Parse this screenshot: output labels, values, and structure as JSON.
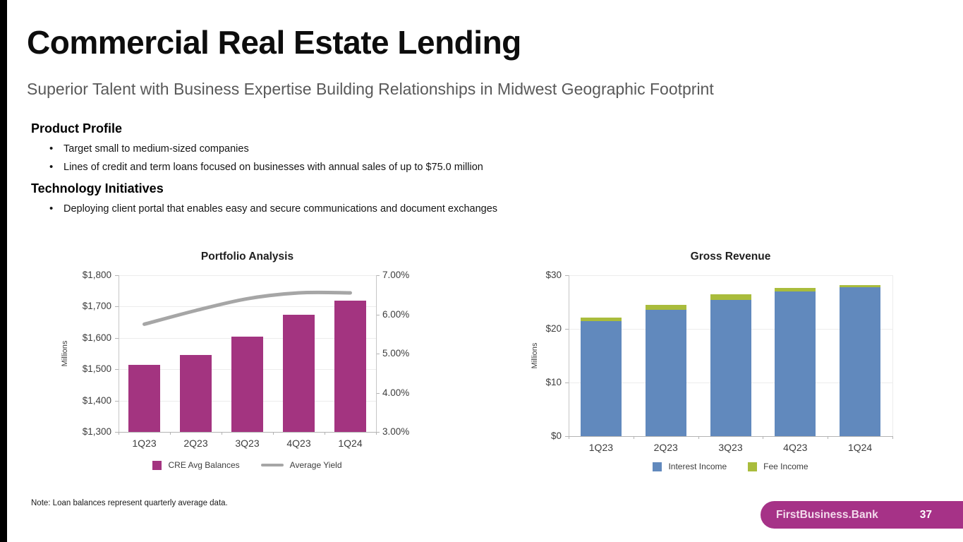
{
  "header": {
    "title": "Commercial Real Estate Lending",
    "subtitle": "Superior Talent with Business Expertise Building Relationships in Midwest Geographic Footprint"
  },
  "sections": [
    {
      "heading": "Product Profile",
      "bullets": [
        "Target small to medium-sized companies",
        "Lines of credit and term loans focused on businesses with annual sales of up to $75.0 million"
      ]
    },
    {
      "heading": "Technology Initiatives",
      "bullets": [
        "Deploying client portal that enables easy and secure communications and document exchanges"
      ]
    }
  ],
  "note": "Note: Loan balances represent quarterly average data.",
  "footer": {
    "brand": "FirstBusiness.Bank",
    "page_number": "37",
    "bar_color": "#a63287"
  },
  "chart_data": [
    {
      "type": "bar",
      "stacked": false,
      "title": "Portfolio Analysis",
      "categories": [
        "1Q23",
        "2Q23",
        "3Q23",
        "4Q23",
        "1Q24"
      ],
      "series": [
        {
          "name": "CRE Avg Balances",
          "kind": "bar",
          "axis": "left",
          "color": "#a33480",
          "values": [
            1515,
            1545,
            1605,
            1675,
            1720
          ]
        },
        {
          "name": "Average Yield",
          "kind": "line",
          "axis": "right",
          "color": "#a6a6a6",
          "values": [
            5.75,
            6.1,
            6.4,
            6.55,
            6.55
          ]
        }
      ],
      "left_axis": {
        "title": "Millions",
        "min": 1300,
        "max": 1800,
        "step": 100,
        "ticks": [
          "$1,300",
          "$1,400",
          "$1,500",
          "$1,600",
          "$1,700",
          "$1,800"
        ]
      },
      "right_axis": {
        "min": 3,
        "max": 7,
        "step": 1,
        "ticks": [
          "3.00%",
          "4.00%",
          "5.00%",
          "6.00%",
          "7.00%"
        ]
      },
      "legend_position": "bottom",
      "grid": true
    },
    {
      "type": "bar",
      "stacked": true,
      "title": "Gross Revenue",
      "categories": [
        "1Q23",
        "2Q23",
        "3Q23",
        "4Q23",
        "1Q24"
      ],
      "series": [
        {
          "name": "Interest Income",
          "kind": "bar",
          "axis": "left",
          "color": "#6189bd",
          "values": [
            21.5,
            23.5,
            25.4,
            27.0,
            27.7
          ]
        },
        {
          "name": "Fee Income",
          "kind": "bar",
          "axis": "left",
          "color": "#a9bc3c",
          "values": [
            0.6,
            1.0,
            1.0,
            0.6,
            0.4
          ]
        }
      ],
      "left_axis": {
        "title": "Millions",
        "min": 0,
        "max": 30,
        "step": 10,
        "ticks": [
          "$0",
          "$10",
          "$20",
          "$30"
        ]
      },
      "legend_position": "bottom",
      "grid": true
    }
  ]
}
